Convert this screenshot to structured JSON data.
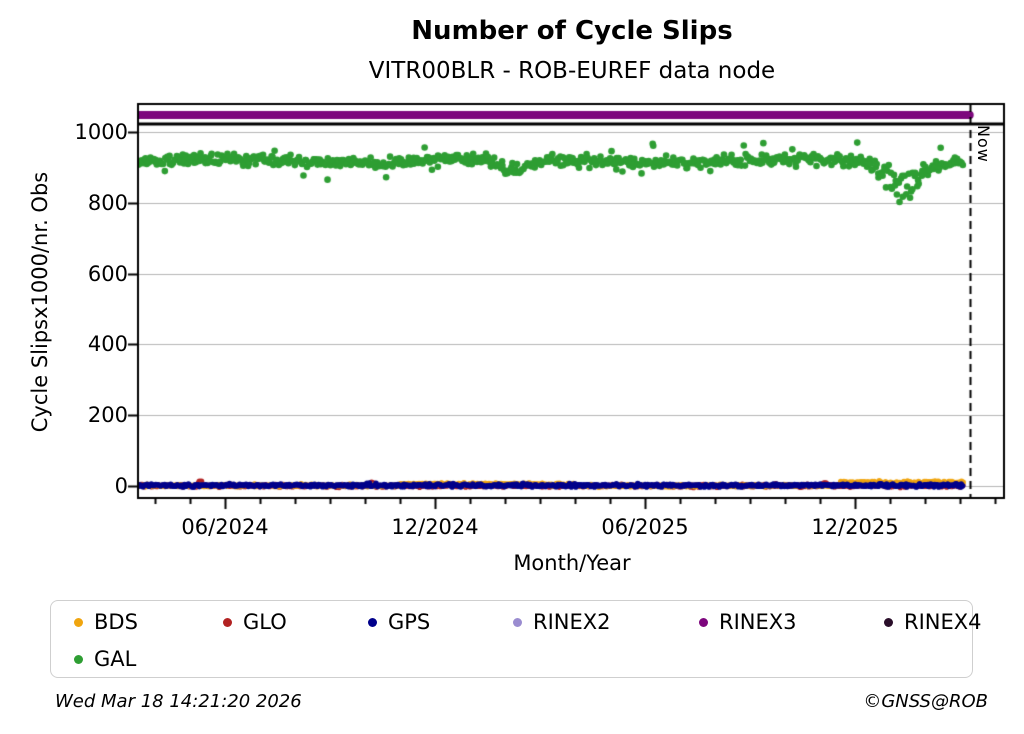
{
  "header": {
    "title": "Number of Cycle Slips",
    "subtitle": "VITR00BLR - ROB-EUREF data node"
  },
  "footer": {
    "timestamp": "Wed Mar 18 14:21:20 2026",
    "copyright": "©GNSS@ROB"
  },
  "chart_data": {
    "type": "scatter",
    "title": "Number of Cycle Slips",
    "subtitle": "VITR00BLR - ROB-EUREF data node",
    "xlabel": "Month/Year",
    "ylabel": "Cycle Slipsx1000/nr. Obs",
    "xlim": [
      2024.207,
      2026.274
    ],
    "ylim": [
      -37,
      1082
    ],
    "grid": "horizontal-only",
    "grid_color": "#b5b5b5",
    "x_major_ticks": [
      {
        "value": 2024.4167,
        "label": "06/2024"
      },
      {
        "value": 2024.9167,
        "label": "12/2024"
      },
      {
        "value": 2025.4167,
        "label": "06/2025"
      },
      {
        "value": 2025.9167,
        "label": "12/2025"
      }
    ],
    "x_minor_tick_start": 2024.25,
    "x_minor_tick_step": 0.0833333,
    "x_minor_tick_end": 2026.26,
    "y_ticks": [
      0,
      200,
      400,
      600,
      800,
      1000
    ],
    "separator_line_y": 1023,
    "now_line": {
      "x": 2026.19,
      "label": "Now"
    },
    "series": [
      {
        "name": "RINEX3",
        "type": "hline",
        "color": "#7D067D",
        "y": 1048,
        "from": 2024.21,
        "to": 2026.19,
        "width": 8
      },
      {
        "name": "GLO",
        "type": "band",
        "color": "#B22222",
        "seed": 4,
        "n": 680,
        "x_from": 2024.21,
        "x_to": 2026.175,
        "baseline": 0.2,
        "sigma": 1.6,
        "marker": 2.8,
        "clip": [
          -5,
          6
        ],
        "spikes": [
          {
            "x": 2024.357,
            "amp": 14,
            "width": 0.006
          },
          {
            "x": 2024.77,
            "amp": 12,
            "width": 0.005
          },
          {
            "x": 2025.845,
            "amp": 9,
            "width": 0.005
          }
        ]
      },
      {
        "name": "BDS",
        "type": "band",
        "color": "#F0A50F",
        "seed": 5,
        "n": 680,
        "x_from": 2024.21,
        "x_to": 2026.175,
        "baseline": 1.0,
        "sigma": 1.6,
        "marker": 2.8,
        "clip": [
          -4,
          6
        ],
        "zones": [
          {
            "from": 2024.83,
            "to": 2025.25,
            "lift": 3,
            "spread": 2
          },
          {
            "from": 2025.88,
            "to": 2026.175,
            "lift": 6,
            "spread": 5
          }
        ]
      },
      {
        "name": "GPS",
        "type": "band",
        "color": "#00008B",
        "seed": 3,
        "n": 680,
        "x_from": 2024.21,
        "x_to": 2026.175,
        "baseline": 1.5,
        "sigma": 2.2,
        "marker": 2.8,
        "clip": [
          -3,
          8
        ]
      },
      {
        "name": "GAL",
        "type": "band",
        "color": "#2E9E33",
        "seed": 7,
        "n": 680,
        "x_from": 2024.21,
        "x_to": 2026.175,
        "baseline": 918,
        "sigma": 8,
        "marker": 3.3,
        "min": 798,
        "wiggle": {
          "amp": 5,
          "freq": 9
        },
        "dips": [
          {
            "center": 2025.105,
            "width": 0.035,
            "depth": 55,
            "rand": 0.6
          },
          {
            "center": 2026.03,
            "width": 0.055,
            "depth": 118,
            "rand": 0.75
          }
        ],
        "outliers": {
          "high_p": 0.012,
          "high_min": 28,
          "high_range": 20,
          "low_p": 0.007,
          "low_min": 26,
          "low_range": 18
        }
      }
    ],
    "observed_levels": {
      "GAL_baseline_range": [
        895,
        945
      ],
      "GAL_dip_2025_02_min": 860,
      "GAL_dip_2026_min": 800,
      "GPS_level": 2,
      "GLO_spike_values": [
        14,
        12,
        9
      ],
      "BDS_late_2025_level_range": [
        6,
        14
      ],
      "RINEX3_level": 1048
    },
    "legend": {
      "position": "bottom",
      "rows": 2,
      "items": [
        {
          "label": "BDS",
          "color": "#F0A50F",
          "row": 0,
          "col": 0
        },
        {
          "label": "GLO",
          "color": "#B22222",
          "row": 0,
          "col": 1
        },
        {
          "label": "GPS",
          "color": "#00008B",
          "row": 0,
          "col": 2
        },
        {
          "label": "RINEX2",
          "color": "#9A8CD0",
          "row": 0,
          "col": 3
        },
        {
          "label": "RINEX3",
          "color": "#7D067D",
          "row": 0,
          "col": 4
        },
        {
          "label": "RINEX4",
          "color": "#2A0E2A",
          "row": 0,
          "col": 5
        },
        {
          "label": "GAL",
          "color": "#2E9E33",
          "row": 1,
          "col": 0
        }
      ]
    }
  }
}
